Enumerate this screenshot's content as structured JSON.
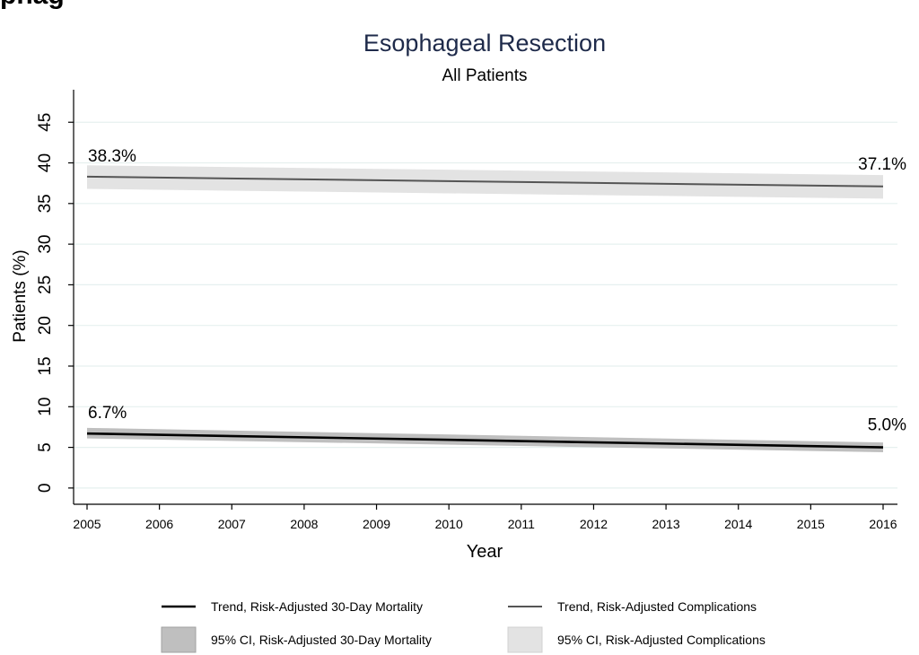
{
  "page_heading": "phag",
  "chart_data": {
    "type": "line",
    "title": "Esophageal Resection",
    "subtitle": "All Patients",
    "xlabel": "Year",
    "ylabel": "Patients (%)",
    "x": [
      2005,
      2006,
      2007,
      2008,
      2009,
      2010,
      2011,
      2012,
      2013,
      2014,
      2015,
      2016
    ],
    "xlim": [
      2005,
      2016
    ],
    "ylim": [
      -2,
      49
    ],
    "yticks": [
      0,
      5,
      10,
      15,
      20,
      25,
      30,
      35,
      40,
      45
    ],
    "grid": true,
    "legend_position": "bottom",
    "series": [
      {
        "name": "Trend, Risk-Adjusted 30-Day Mortality",
        "ci_name": "95% CI, Risk-Adjusted 30-Day Mortality",
        "line_color": "#000000",
        "ci_color": "#bfbfbf",
        "start": 6.7,
        "end": 5.0,
        "ci_lower": [
          6.1,
          4.4
        ],
        "ci_upper": [
          7.4,
          5.6
        ],
        "start_label": "6.7%",
        "end_label": "5.0%"
      },
      {
        "name": "Trend, Risk-Adjusted Complications",
        "ci_name": "95% CI, Risk-Adjusted Complications",
        "line_color": "#555555",
        "ci_color": "#e3e3e3",
        "start": 38.3,
        "end": 37.1,
        "ci_lower": [
          36.8,
          35.6
        ],
        "ci_upper": [
          39.7,
          38.5
        ],
        "start_label": "38.3%",
        "end_label": "37.1%"
      }
    ]
  }
}
